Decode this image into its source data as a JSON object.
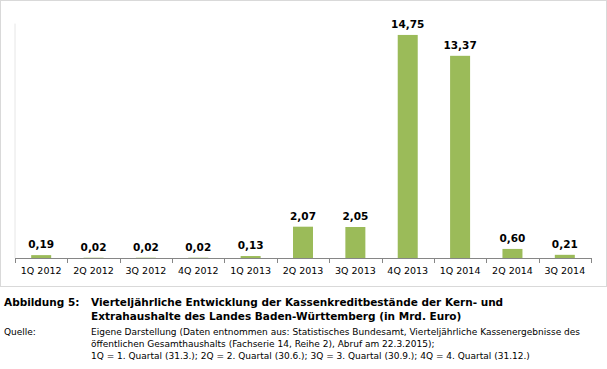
{
  "chart_data": {
    "type": "bar",
    "figure_label": "Abbildung 5:",
    "title": [
      "Vierteljährliche Entwicklung der Kassenkreditbestände der Kern- und",
      "Extrahaushalte des Landes Baden-Württemberg (in Mrd. Euro)"
    ],
    "source_label": "Quelle:",
    "source": [
      "Eigene Darstellung (Daten entnommen aus: Statistisches Bundesamt, Vierteljährliche Kassenergebnisse des",
      "öffentlichen Gesamthaushalts (Fachserie 14, Reihe 2), Abruf am 22.3.2015);",
      "1Q = 1. Quartal (31.3.);  2Q = 2. Quartal (30.6.);  3Q = 3. Quartal (30.9.);  4Q = 4. Quartal (31.12.)"
    ],
    "categories": [
      "1Q 2012",
      "2Q 2012",
      "3Q 2012",
      "4Q 2012",
      "1Q 2013",
      "2Q 2013",
      "3Q 2013",
      "4Q 2013",
      "1Q 2014",
      "2Q 2014",
      "3Q 2014"
    ],
    "values": [
      0.19,
      0.02,
      0.02,
      0.02,
      0.13,
      2.07,
      2.05,
      14.75,
      13.37,
      0.6,
      0.21
    ],
    "value_labels": [
      "0,19",
      "0,02",
      "0,02",
      "0,02",
      "0,13",
      "2,07",
      "2,05",
      "14,75",
      "13,37",
      "0,60",
      "0,21"
    ],
    "color": "#9bbb59",
    "ylim": [
      0,
      15.5
    ],
    "data_labels": true,
    "tick_labels": "x",
    "grid": false
  }
}
